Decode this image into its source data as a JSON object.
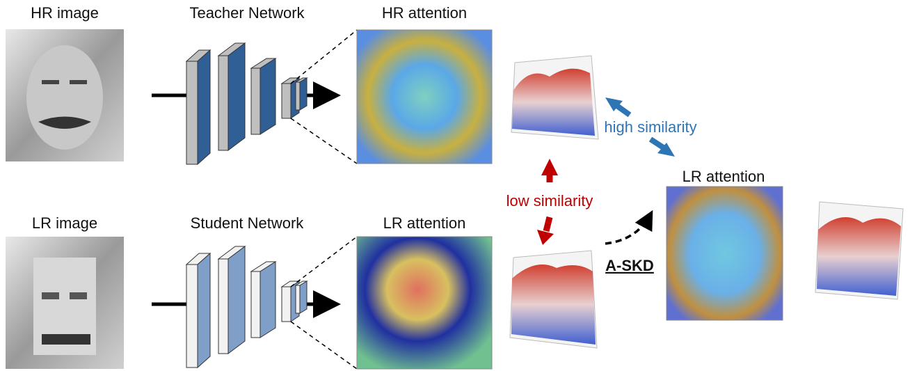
{
  "top": {
    "image": "HR image",
    "network": "Teacher Network",
    "attention": "HR attention"
  },
  "bottom": {
    "image": "LR image",
    "network": "Student Network",
    "attention": "LR attention"
  },
  "comparison": {
    "low": "low similarity",
    "high": "high similarity"
  },
  "distilled": {
    "method": "A-SKD",
    "attention": "LR attention"
  }
}
